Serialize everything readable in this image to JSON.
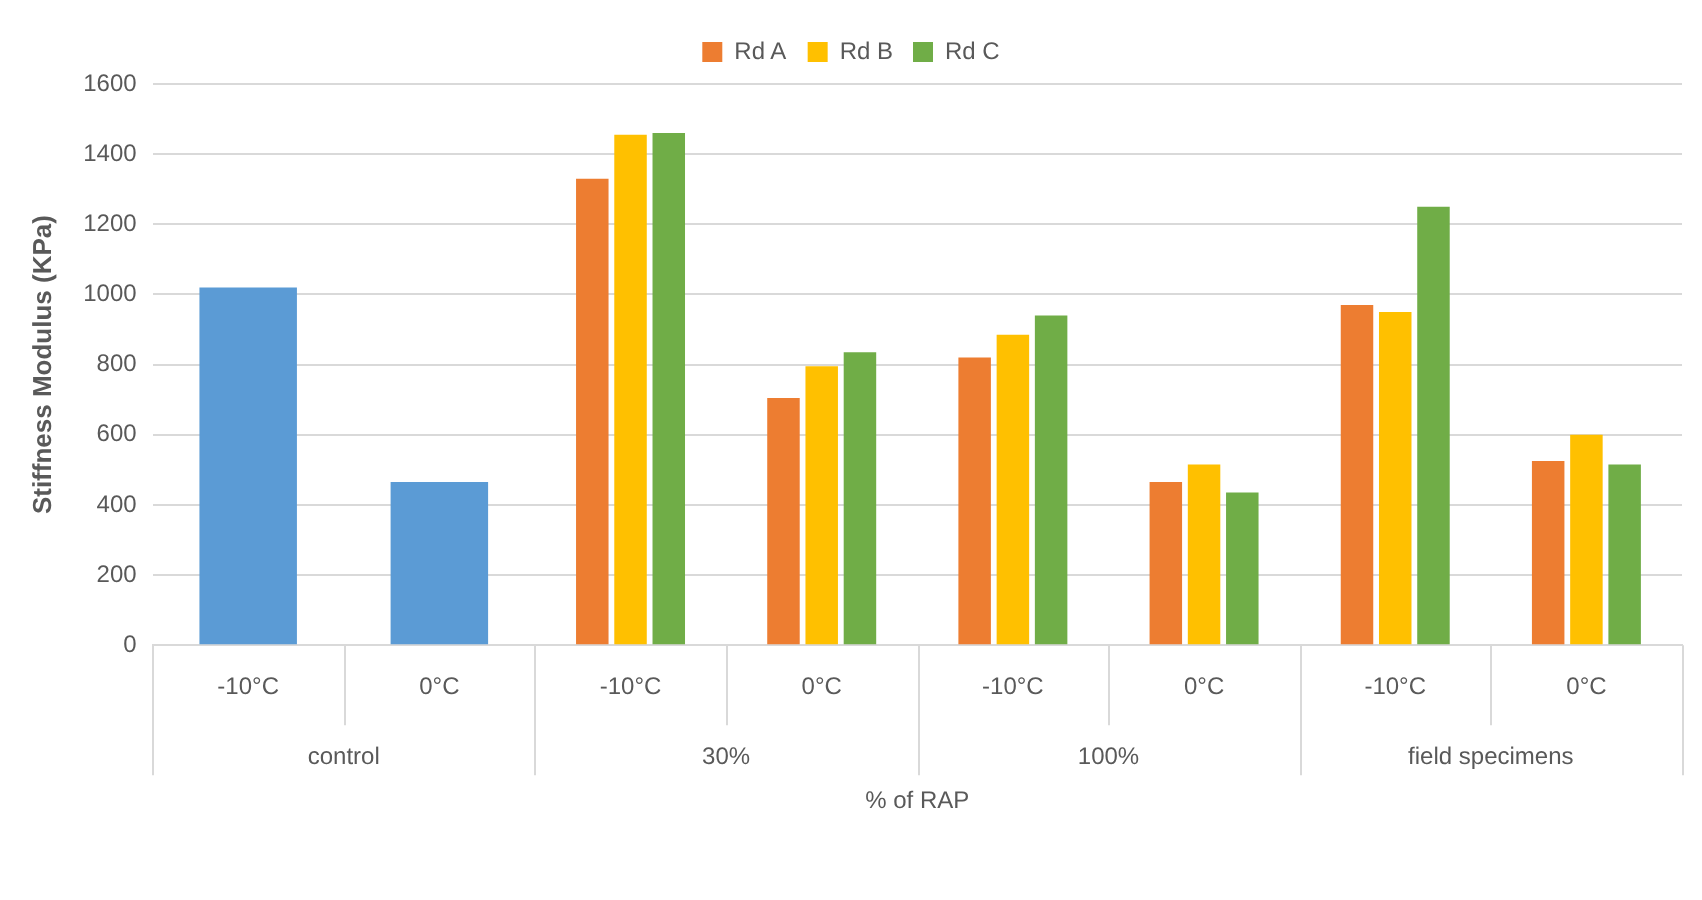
{
  "chart_data": {
    "type": "bar",
    "ylabel": "Stiffness Modulus (KPa)",
    "xlabel": "% of RAP",
    "categories": [
      "-10°C",
      "0°C",
      "-10°C",
      "0°C",
      "-10°C",
      "0°C",
      "-10°C",
      "0°C"
    ],
    "annotations": [
      "control",
      "30%",
      "100%",
      "field specimens"
    ],
    "series": [
      {
        "color": "#5b9bd5",
        "values": [
          1020,
          465,
          null,
          null,
          null,
          null,
          null,
          null
        ]
      },
      {
        "name": "Rd A",
        "color": "#ed7d31",
        "values": [
          null,
          null,
          1330,
          705,
          820,
          465,
          970,
          525
        ]
      },
      {
        "name": "Rd B",
        "color": "#ffc000",
        "values": [
          null,
          null,
          1455,
          795,
          885,
          515,
          950,
          600
        ]
      },
      {
        "name": "Rd C",
        "color": "#70ad47",
        "values": [
          null,
          null,
          1460,
          835,
          940,
          435,
          1250,
          515
        ]
      }
    ],
    "ylim": [
      0,
      1600
    ],
    "yticks": [
      0,
      200,
      400,
      600,
      800,
      1000,
      1200,
      1400,
      1600
    ],
    "grid": "y",
    "legend": "top"
  }
}
